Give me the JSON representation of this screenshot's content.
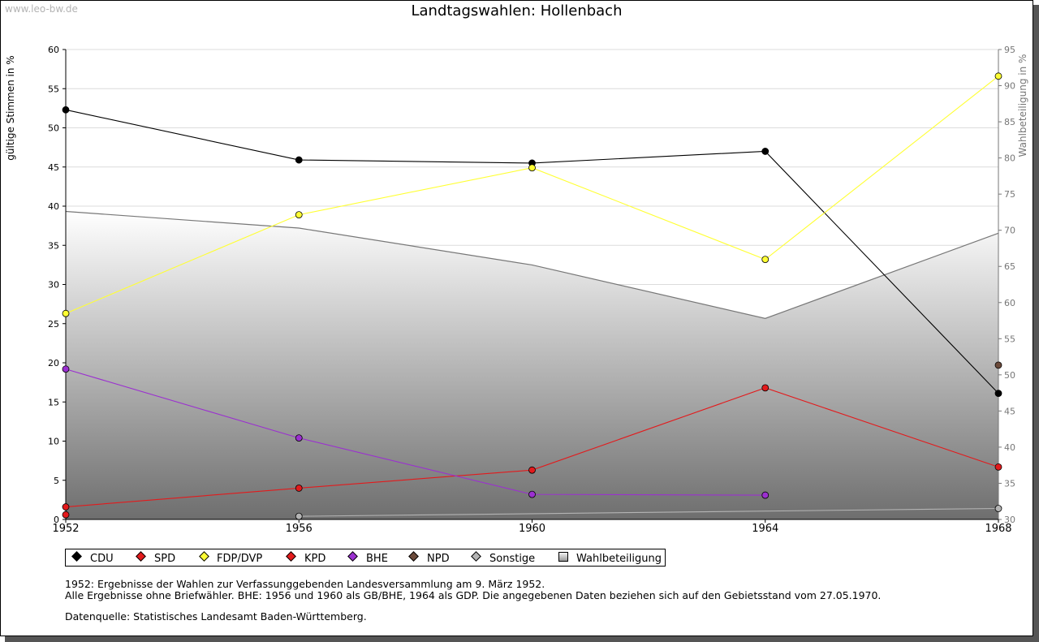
{
  "watermark": "www.leo-bw.de",
  "chart_data": {
    "type": "line",
    "title": "Landtagswahlen: Hollenbach",
    "ylabel": "gültige Stimmen in %",
    "y2label": "Wahlbeteiligung in %",
    "categories": [
      "1952",
      "1956",
      "1960",
      "1964",
      "1968"
    ],
    "ylim": [
      0,
      60
    ],
    "y2lim": [
      30,
      95
    ],
    "yticks": [
      "0",
      "5",
      "10",
      "15",
      "20",
      "25",
      "30",
      "35",
      "40",
      "45",
      "50",
      "55",
      "60"
    ],
    "y2ticks": [
      "30",
      "35",
      "40",
      "45",
      "50",
      "55",
      "60",
      "65",
      "70",
      "75",
      "80",
      "85",
      "90",
      "95"
    ],
    "grid": true,
    "legend_position": "bottom",
    "series": [
      {
        "name": "CDU",
        "color": "#000000",
        "values": [
          52.3,
          45.9,
          45.5,
          47.0,
          16.1
        ]
      },
      {
        "name": "SPD",
        "color": "#e31a1c",
        "values": [
          1.6,
          4.0,
          6.3,
          16.8,
          6.7
        ]
      },
      {
        "name": "FDP/DVP",
        "color": "#ffff33",
        "values": [
          26.3,
          38.9,
          44.9,
          33.2,
          56.6
        ]
      },
      {
        "name": "KPD",
        "color": "#e31a1c",
        "values": [
          0.6,
          null,
          null,
          null,
          null
        ]
      },
      {
        "name": "BHE",
        "color": "#9b30d0",
        "values": [
          19.2,
          10.4,
          3.2,
          3.1,
          null
        ]
      },
      {
        "name": "NPD",
        "color": "#6b4a3a",
        "values": [
          null,
          null,
          null,
          null,
          19.7
        ]
      },
      {
        "name": "Sonstige",
        "color": "#b4b4b4",
        "values": [
          null,
          0.4,
          null,
          null,
          1.4
        ]
      },
      {
        "name": "Wahlbeteiligung",
        "color": "#777777",
        "axis": "right",
        "values": [
          72.6,
          70.3,
          65.2,
          57.8,
          69.6
        ]
      }
    ]
  },
  "notes": {
    "line1": "1952: Ergebnisse der Wahlen zur Verfassunggebenden Landesversammlung am 9. März 1952.",
    "line2": "Alle Ergebnisse ohne Briefwähler. BHE: 1956 und 1960 als GB/BHE, 1964 als GDP. Die angegebenen Daten beziehen sich auf den Gebietsstand vom 27.05.1970.",
    "source": "Datenquelle: Statistisches Landesamt Baden-Württemberg."
  }
}
